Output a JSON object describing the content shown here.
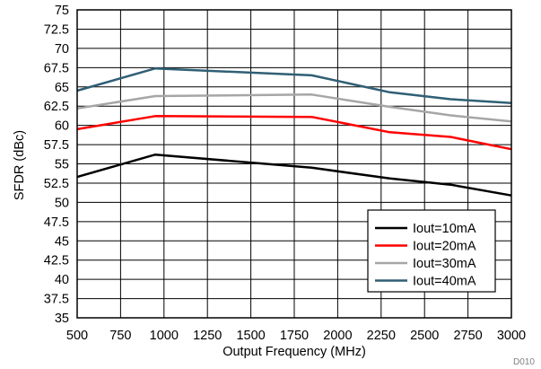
{
  "chart_data": {
    "type": "line",
    "xlabel": "Output Frequency (MHz)",
    "ylabel": "SFDR (dBc)",
    "xlim": [
      500,
      3000
    ],
    "ylim": [
      35,
      75
    ],
    "xticks": [
      500,
      750,
      1000,
      1250,
      1500,
      1750,
      2000,
      2250,
      2500,
      2750,
      3000
    ],
    "xtick_labels": [
      "500",
      "750",
      "1000",
      "1250",
      "1500",
      "1750",
      "2000",
      "2250",
      "2500",
      "2750",
      "3000"
    ],
    "yticks": [
      35,
      37.5,
      40,
      42.5,
      45,
      47.5,
      50,
      52.5,
      55,
      57.5,
      60,
      62.5,
      65,
      67.5,
      70,
      72.5,
      75
    ],
    "ytick_labels": [
      "35",
      "37.5",
      "40",
      "42.5",
      "45",
      "47.5",
      "50",
      "52.5",
      "55",
      "57.5",
      "60",
      "62.5",
      "65",
      "67.5",
      "70",
      "72.5",
      "75"
    ],
    "grid": true,
    "legend_position": "bottom-right",
    "figure_id": "D010",
    "series": [
      {
        "name": "Iout=10mA",
        "color": "#000000",
        "x": [
          500,
          950,
          1850,
          2300,
          2650,
          3000
        ],
        "y": [
          53.3,
          56.2,
          54.5,
          53.1,
          52.3,
          50.9
        ]
      },
      {
        "name": "Iout=20mA",
        "color": "#ff0000",
        "x": [
          500,
          950,
          1850,
          2300,
          2650,
          3000
        ],
        "y": [
          59.5,
          61.2,
          61.1,
          59.1,
          58.5,
          56.9
        ]
      },
      {
        "name": "Iout=30mA",
        "color": "#a6a6a6",
        "x": [
          500,
          950,
          1850,
          2300,
          2650,
          3000
        ],
        "y": [
          62.2,
          63.8,
          64,
          62.4,
          61.3,
          60.5
        ]
      },
      {
        "name": "Iout=40mA",
        "color": "#2f5f75",
        "x": [
          500,
          950,
          1850,
          2300,
          2650,
          3000
        ],
        "y": [
          64.5,
          67.4,
          66.5,
          64.3,
          63.4,
          62.9
        ]
      }
    ]
  }
}
